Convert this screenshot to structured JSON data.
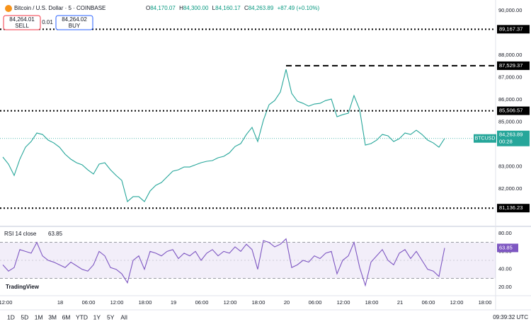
{
  "header": {
    "symbol": "Bitcoin / U.S. Dollar · 5 · COINBASE",
    "ohlc": [
      {
        "key": "O",
        "value": "84,170.07"
      },
      {
        "key": "H",
        "value": "84,300.00"
      },
      {
        "key": "L",
        "value": "84,160.17"
      },
      {
        "key": "C",
        "value": "84,263.89"
      }
    ],
    "change": "+87.49 (+0.10%)"
  },
  "trade": {
    "sell_price": "84,264.01",
    "sell": "SELL",
    "spread": "0.01",
    "buy_price": "84,264.02",
    "buy": "BUY"
  },
  "chart_data": [
    {
      "type": "line",
      "series": [
        {
          "name": "BTCUSD",
          "color": "#26a69a",
          "values": [
            83429,
            83111,
            82603,
            83333,
            83873,
            84127,
            84508,
            84444,
            84190,
            84063,
            83873,
            83556,
            83333,
            83175,
            83079,
            82857,
            82667,
            83111,
            83175,
            82857,
            82603,
            82381,
            81429,
            81651,
            81651,
            81429,
            81905,
            82159,
            82286,
            82540,
            82794,
            82857,
            82984,
            82984,
            83079,
            83175,
            83238,
            83270,
            83397,
            83460,
            83619,
            83905,
            84032,
            84444,
            84762,
            84127,
            85079,
            85778,
            85968,
            86349,
            87365,
            86286,
            85937,
            85841,
            85714,
            85810,
            85841,
            85968,
            86032,
            85238,
            85333,
            85397,
            86190,
            85556,
            83968,
            84032,
            84190,
            84444,
            84381,
            84127,
            84254,
            84508,
            84444,
            84635,
            84444,
            84190,
            84063,
            83873,
            84263.89
          ]
        }
      ],
      "ylim": [
        80380,
        90480
      ],
      "yticks": [
        {
          "value": 82000,
          "label": "82,000.00"
        },
        {
          "value": 83000,
          "label": "83,000.00"
        },
        {
          "value": 85000,
          "label": "85,000.00"
        },
        {
          "value": 86000,
          "label": "86,000.00"
        },
        {
          "value": 87000,
          "label": "87,000.00"
        },
        {
          "value": 88000,
          "label": "88,000.00"
        },
        {
          "value": 90000,
          "label": "90,000.00"
        }
      ],
      "levels": [
        {
          "value": 89167.37,
          "label": "89,167.37",
          "style": "dotted"
        },
        {
          "value": 87529.37,
          "label": "87,529.37",
          "style": "dashed"
        },
        {
          "value": 85506.57,
          "label": "85,506.57",
          "style": "dotted"
        },
        {
          "value": 81136.23,
          "label": "81,136.23",
          "style": "dotted"
        }
      ],
      "last_label": {
        "label": "84,263.89",
        "countdown": "00:28"
      }
    },
    {
      "type": "line",
      "title": "RSI 14 close",
      "series": [
        {
          "color": "#7e57c2",
          "values": [
            45,
            38,
            42,
            62,
            60,
            58,
            70,
            55,
            50,
            48,
            45,
            42,
            48,
            44,
            40,
            38,
            45,
            60,
            55,
            42,
            40,
            35,
            25,
            50,
            55,
            40,
            60,
            58,
            55,
            60,
            62,
            52,
            58,
            55,
            60,
            50,
            58,
            62,
            55,
            60,
            58,
            65,
            60,
            68,
            62,
            40,
            72,
            70,
            65,
            68,
            74,
            42,
            45,
            50,
            48,
            55,
            52,
            58,
            60,
            35,
            50,
            55,
            70,
            42,
            22,
            48,
            55,
            62,
            50,
            45,
            58,
            62,
            52,
            60,
            50,
            40,
            38,
            32,
            63.85
          ]
        }
      ],
      "ylim": [
        15.3,
        86.3
      ],
      "yticks": [
        {
          "value": 20,
          "label": "20.00"
        },
        {
          "value": 40,
          "label": "40.00"
        },
        {
          "value": 60,
          "label": "60.00"
        },
        {
          "value": 80,
          "label": "80.00"
        }
      ],
      "band": [
        30,
        70
      ],
      "midline": 50,
      "band_color": "#7e57c2"
    }
  ],
  "time_axis": {
    "labels": [
      "12:00",
      "18",
      "06:00",
      "12:00",
      "18:00",
      "19",
      "06:00",
      "12:00",
      "18:00",
      "20",
      "06:00",
      "12:00",
      "18:00",
      "21",
      "06:00",
      "12:00",
      "18:00"
    ]
  },
  "footer": {
    "ranges": [
      "1D",
      "5D",
      "1M",
      "3M",
      "6M",
      "YTD",
      "1Y",
      "5Y",
      "All"
    ],
    "clock": "09:39:32 UTC"
  },
  "brand": "TradingView"
}
